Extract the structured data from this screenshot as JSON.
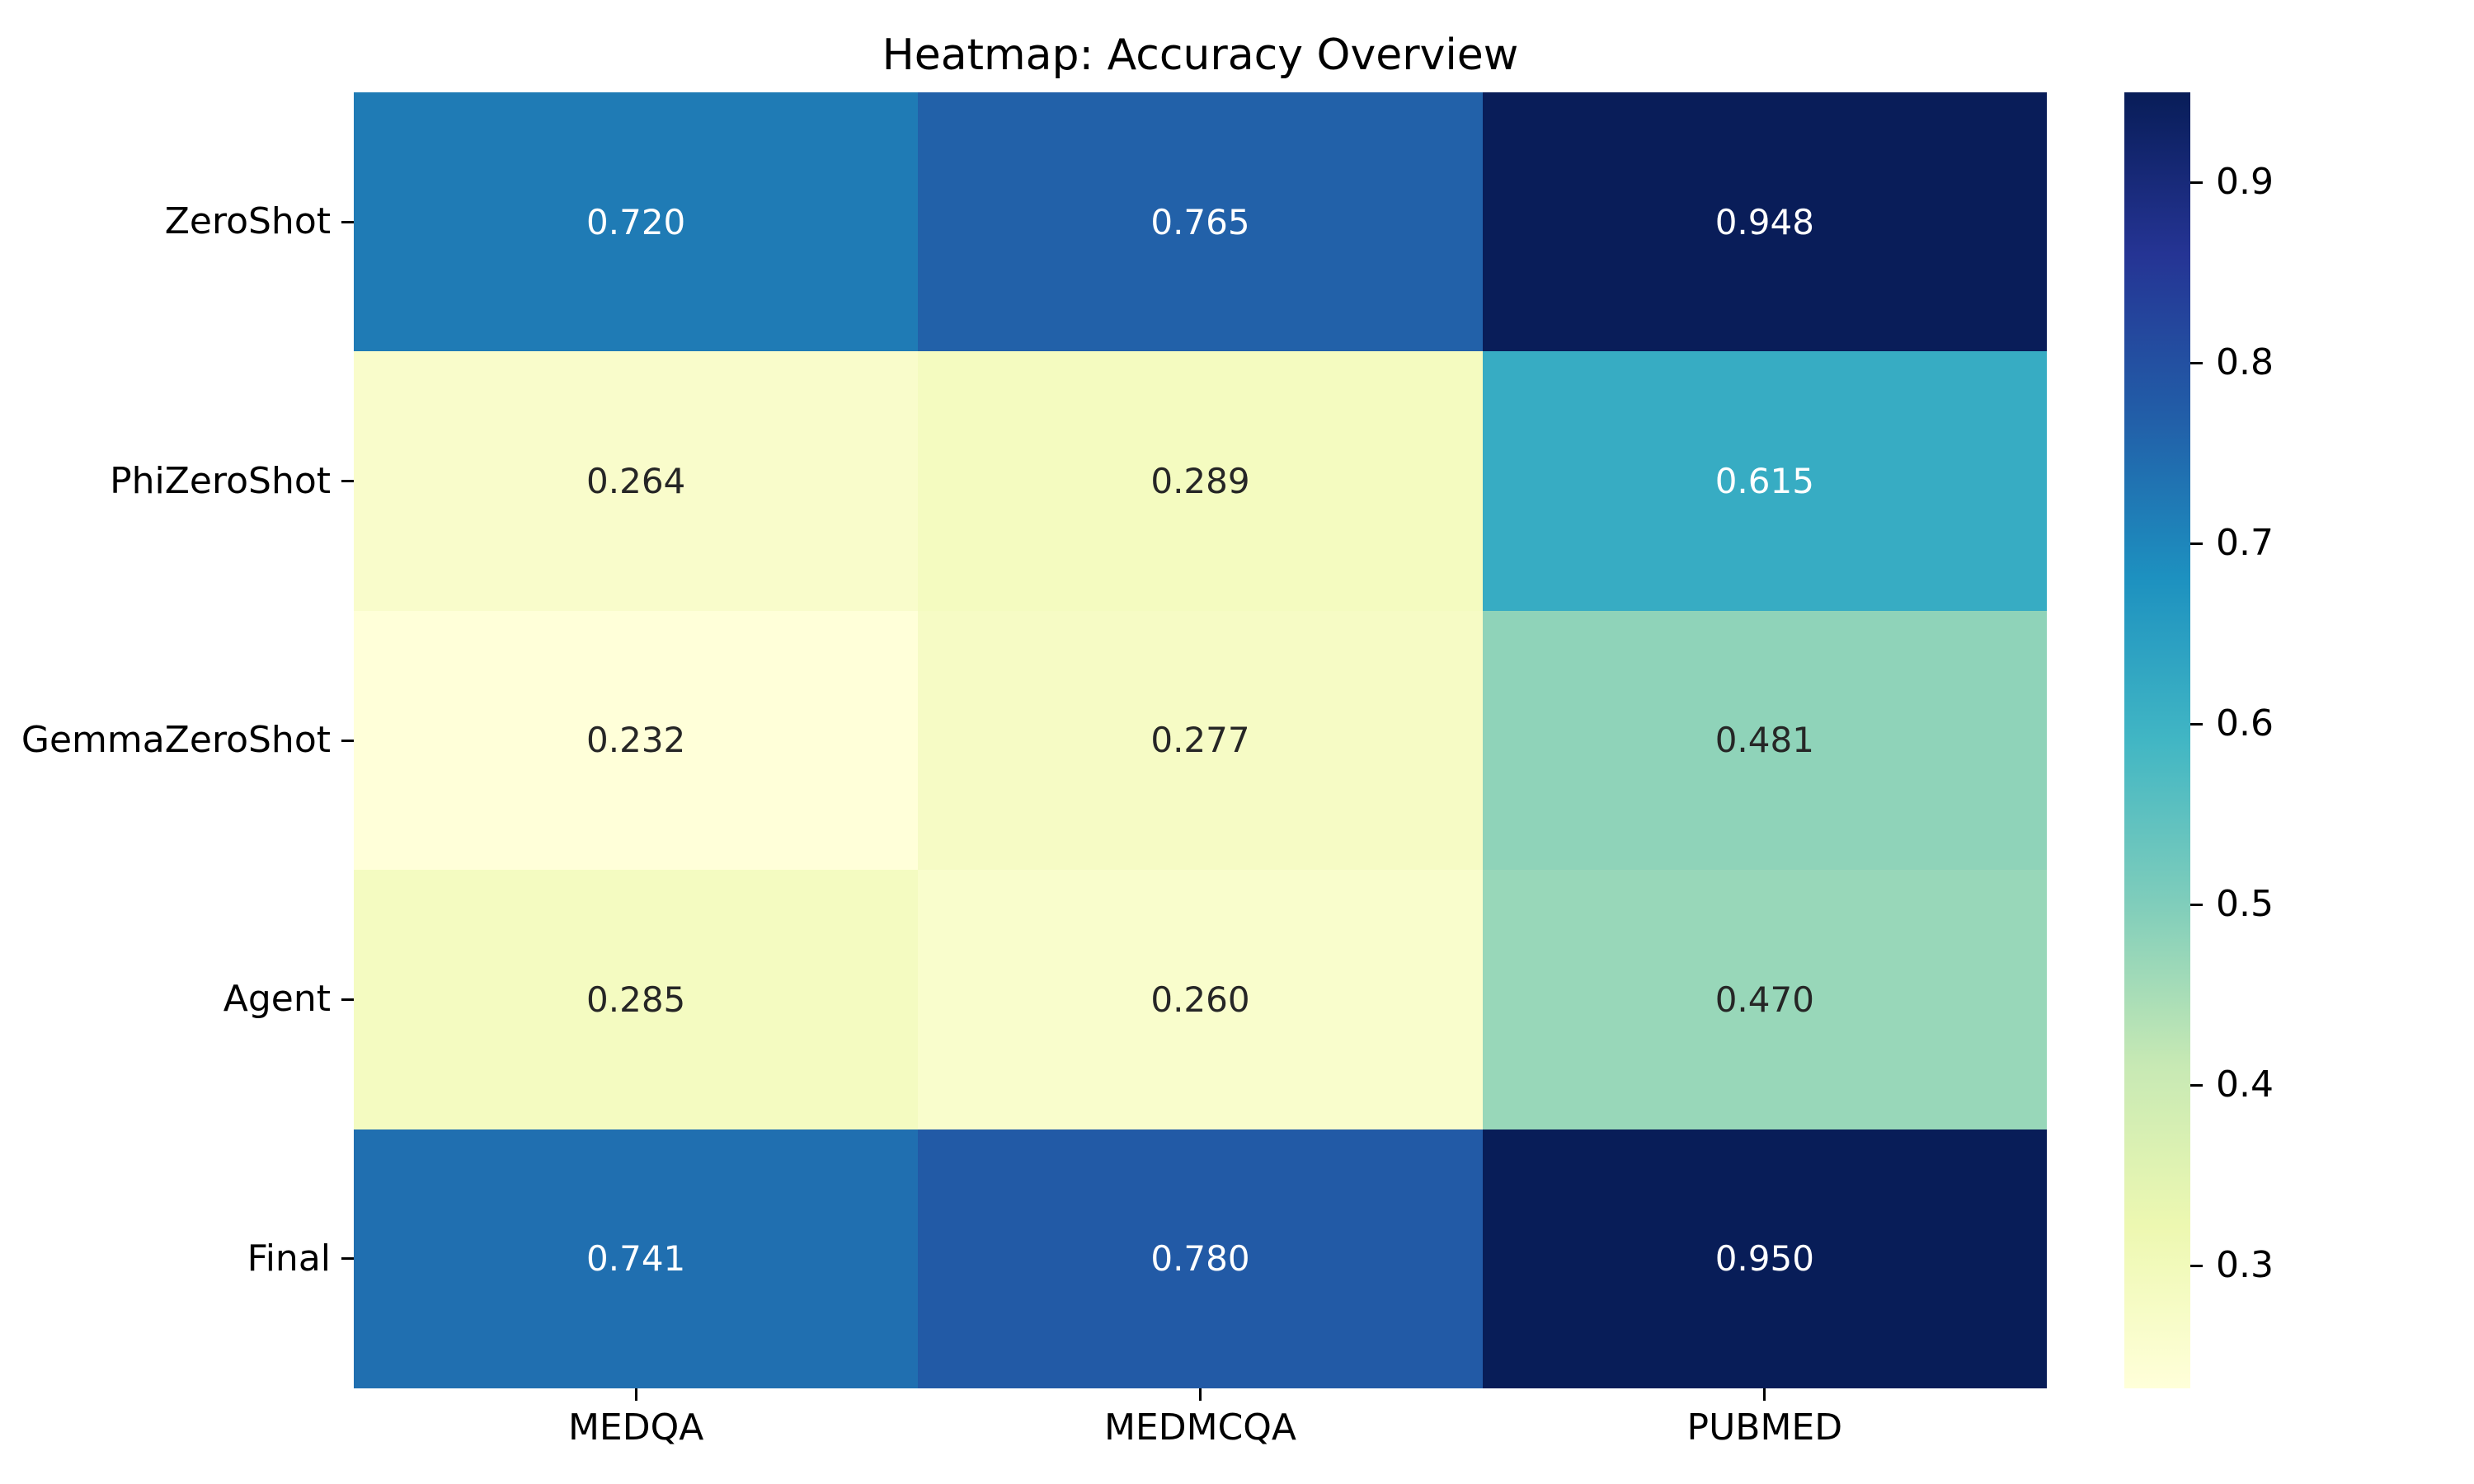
{
  "chart_data": {
    "type": "heatmap",
    "title": "Heatmap: Accuracy Overview",
    "rows": [
      "ZeroShot",
      "PhiZeroShot",
      "GemmaZeroShot",
      "Agent",
      "Final"
    ],
    "columns": [
      "MEDQA",
      "MEDMCQA",
      "PUBMED"
    ],
    "values": [
      [
        0.72,
        0.765,
        0.948
      ],
      [
        0.264,
        0.289,
        0.615
      ],
      [
        0.232,
        0.277,
        0.481
      ],
      [
        0.285,
        0.26,
        0.47
      ],
      [
        0.741,
        0.78,
        0.95
      ]
    ],
    "value_labels": [
      [
        "0.720",
        "0.765",
        "0.948"
      ],
      [
        "0.264",
        "0.289",
        "0.615"
      ],
      [
        "0.232",
        "0.277",
        "0.481"
      ],
      [
        "0.285",
        "0.260",
        "0.470"
      ],
      [
        "0.741",
        "0.780",
        "0.950"
      ]
    ],
    "cell_colors": [
      [
        "#1f7bb5",
        "#2261a9",
        "#091d59"
      ],
      [
        "#f9fccb",
        "#f4fbc0",
        "#37acc3"
      ],
      [
        "#ffffd9",
        "#f6fbc5",
        "#8fd3b9"
      ],
      [
        "#f4fbc1",
        "#f9fdcc",
        "#98d7b9"
      ],
      [
        "#206fb0",
        "#225aa6",
        "#081d58"
      ]
    ],
    "cell_text_colors": [
      [
        "#ffffff",
        "#ffffff",
        "#ffffff"
      ],
      [
        "#262626",
        "#262626",
        "#ffffff"
      ],
      [
        "#262626",
        "#262626",
        "#262626"
      ],
      [
        "#262626",
        "#262626",
        "#262626"
      ],
      [
        "#ffffff",
        "#ffffff",
        "#ffffff"
      ]
    ],
    "colorbar": {
      "colormap": "YlGnBu",
      "vmin": 0.232,
      "vmax": 0.95,
      "tick_labels": [
        "0.9",
        "0.8",
        "0.7",
        "0.6",
        "0.5",
        "0.4",
        "0.3"
      ],
      "tick_values": [
        0.9,
        0.8,
        0.7,
        0.6,
        0.5,
        0.4,
        0.3
      ],
      "gradient_stops": [
        "#ffffd9",
        "#edf8b1",
        "#c7e9b4",
        "#7fcdbb",
        "#41b6c4",
        "#1d91c0",
        "#225ea8",
        "#253494",
        "#081d58"
      ],
      "position": "right"
    },
    "axes": {
      "grid": false,
      "cell_borders": false
    }
  }
}
